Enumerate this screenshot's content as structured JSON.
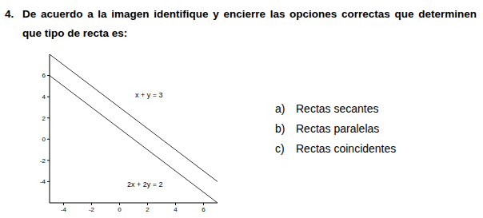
{
  "question": {
    "number": "4.",
    "text": "De acuerdo a la imagen identifique y encierre las opciones correctas que determinen que tipo de recta es:"
  },
  "options": [
    {
      "letter": "a)",
      "text": "Rectas secantes"
    },
    {
      "letter": "b)",
      "text": "Rectas paralelas"
    },
    {
      "letter": "c)",
      "text": "Rectas coincidentes"
    }
  ],
  "chart_data": {
    "type": "line",
    "x": [
      -5,
      7
    ],
    "series": [
      {
        "name": "x + y = 3",
        "color": "#333333",
        "values": [
          8,
          -4
        ]
      },
      {
        "name": "2x + 2y = 2",
        "color": "#333333",
        "values": [
          6,
          -6
        ]
      }
    ],
    "xlim": [
      -5,
      7
    ],
    "ylim": [
      -6,
      8
    ],
    "xticks": [
      -4,
      -2,
      0,
      2,
      4,
      6
    ],
    "yticks": [
      -4,
      -2,
      0,
      2,
      4,
      6
    ],
    "grid": false
  }
}
